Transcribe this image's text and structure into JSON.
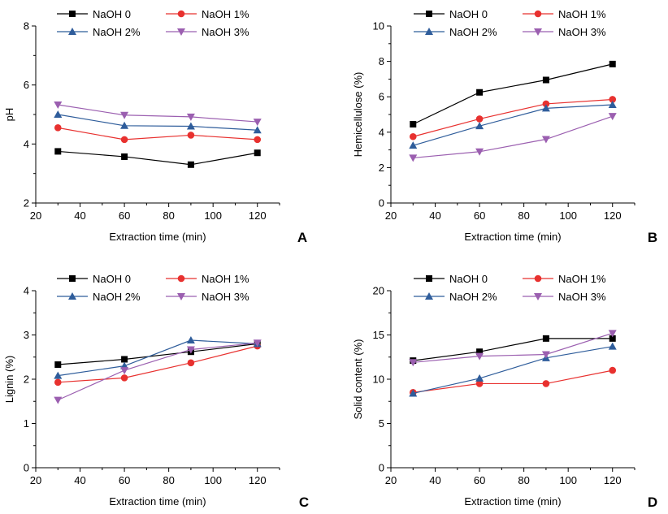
{
  "figure": {
    "legend_labels": [
      "NaOH 0",
      "NaOH 1%",
      "NaOH 2%",
      "NaOH 3%"
    ],
    "series_colors": [
      "#000000",
      "#e8312f",
      "#2f5d9b",
      "#9b5fb0"
    ],
    "marker_shapes": [
      "square",
      "circle",
      "triangle-up",
      "triangle-down"
    ]
  },
  "chart_data": [
    {
      "panel": "A",
      "type": "line",
      "title": "",
      "xlabel": "Extraction time (min)",
      "ylabel": "pH",
      "xlim": [
        20,
        130
      ],
      "ylim": [
        2,
        8
      ],
      "xticks": [
        20,
        40,
        60,
        80,
        100,
        120
      ],
      "yticks": [
        2,
        4,
        6,
        8
      ],
      "x": [
        30,
        60,
        90,
        120
      ],
      "legend_position": "top",
      "series": [
        {
          "name": "NaOH 0",
          "values": [
            3.75,
            3.57,
            3.3,
            3.7
          ]
        },
        {
          "name": "NaOH 1%",
          "values": [
            4.55,
            4.15,
            4.3,
            4.15
          ]
        },
        {
          "name": "NaOH 2%",
          "values": [
            5.0,
            4.62,
            4.6,
            4.47
          ]
        },
        {
          "name": "NaOH 3%",
          "values": [
            5.33,
            4.98,
            4.92,
            4.75
          ]
        }
      ]
    },
    {
      "panel": "B",
      "type": "line",
      "title": "",
      "xlabel": "Extraction time (min)",
      "ylabel": "Hemicellulose (%)",
      "xlim": [
        20,
        130
      ],
      "ylim": [
        0,
        10
      ],
      "xticks": [
        20,
        40,
        60,
        80,
        100,
        120
      ],
      "yticks": [
        0,
        2,
        4,
        6,
        8,
        10
      ],
      "x": [
        30,
        60,
        90,
        120
      ],
      "legend_position": "top",
      "series": [
        {
          "name": "NaOH 0",
          "values": [
            4.45,
            6.25,
            6.95,
            7.85
          ]
        },
        {
          "name": "NaOH 1%",
          "values": [
            3.75,
            4.75,
            5.6,
            5.85
          ]
        },
        {
          "name": "NaOH 2%",
          "values": [
            3.25,
            4.35,
            5.35,
            5.55
          ]
        },
        {
          "name": "NaOH 3%",
          "values": [
            2.55,
            2.9,
            3.6,
            4.9
          ]
        }
      ]
    },
    {
      "panel": "C",
      "type": "line",
      "title": "",
      "xlabel": "Extraction time (min)",
      "ylabel": "Lignin (%)",
      "xlim": [
        20,
        130
      ],
      "ylim": [
        0,
        4
      ],
      "xticks": [
        20,
        40,
        60,
        80,
        100,
        120
      ],
      "yticks": [
        0,
        1,
        2,
        3,
        4
      ],
      "x": [
        30,
        60,
        90,
        120
      ],
      "legend_position": "top",
      "series": [
        {
          "name": "NaOH 0",
          "values": [
            2.33,
            2.45,
            2.62,
            2.8
          ]
        },
        {
          "name": "NaOH 1%",
          "values": [
            1.93,
            2.03,
            2.37,
            2.75
          ]
        },
        {
          "name": "NaOH 2%",
          "values": [
            2.08,
            2.3,
            2.88,
            2.8
          ]
        },
        {
          "name": "NaOH 3%",
          "values": [
            1.53,
            2.2,
            2.67,
            2.82
          ]
        }
      ]
    },
    {
      "panel": "D",
      "type": "line",
      "title": "",
      "xlabel": "Extraction time (min)",
      "ylabel": "Solid content (%)",
      "xlim": [
        20,
        130
      ],
      "ylim": [
        0,
        20
      ],
      "xticks": [
        20,
        40,
        60,
        80,
        100,
        120
      ],
      "yticks": [
        0,
        5,
        10,
        15,
        20
      ],
      "x": [
        30,
        60,
        90,
        120
      ],
      "legend_position": "top",
      "series": [
        {
          "name": "NaOH 0",
          "values": [
            12.1,
            13.1,
            14.6,
            14.6
          ]
        },
        {
          "name": "NaOH 1%",
          "values": [
            8.5,
            9.5,
            9.5,
            11.0
          ]
        },
        {
          "name": "NaOH 2%",
          "values": [
            8.4,
            10.1,
            12.4,
            13.7
          ]
        },
        {
          "name": "NaOH 3%",
          "values": [
            11.9,
            12.6,
            12.8,
            15.2
          ]
        }
      ]
    }
  ]
}
